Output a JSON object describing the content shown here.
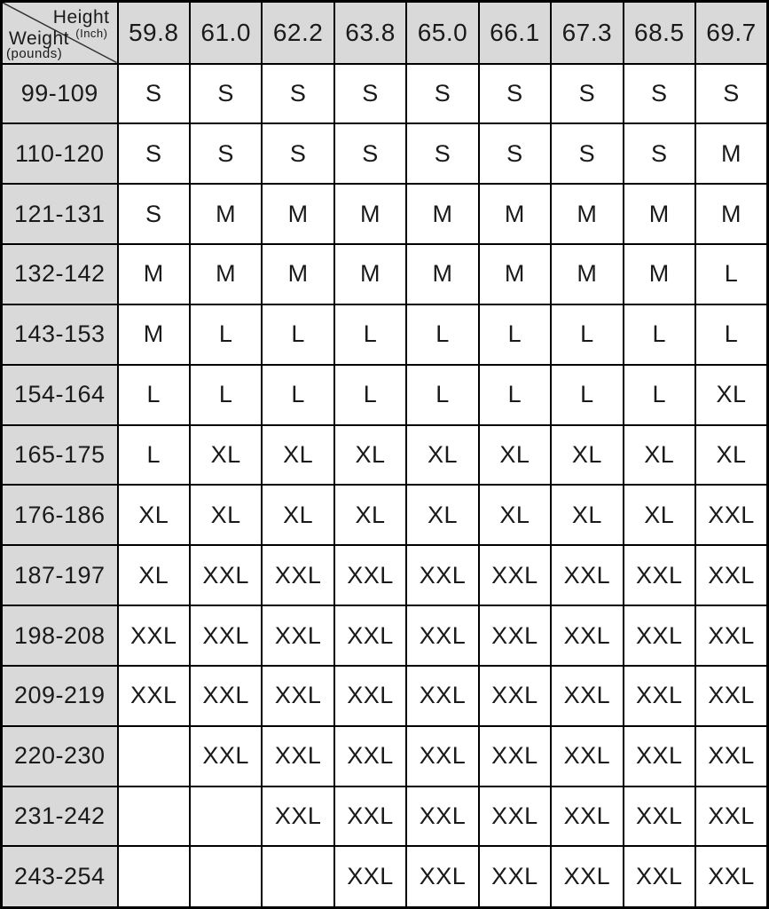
{
  "colors": {
    "header_bg": "#d9d9d9",
    "cell_bg": "#ffffff",
    "border": "#000000",
    "text": "#1a1a1a"
  },
  "chart_data": {
    "type": "table",
    "col_header_label": "Height",
    "col_header_unit": "(Inch)",
    "row_header_label": "Weight",
    "row_header_unit": "(pounds)",
    "columns": [
      "59.8",
      "61.0",
      "62.2",
      "63.8",
      "65.0",
      "66.1",
      "67.3",
      "68.5",
      "69.7"
    ],
    "rows": [
      {
        "weight": "99-109",
        "sizes": [
          "S",
          "S",
          "S",
          "S",
          "S",
          "S",
          "S",
          "S",
          "S"
        ]
      },
      {
        "weight": "110-120",
        "sizes": [
          "S",
          "S",
          "S",
          "S",
          "S",
          "S",
          "S",
          "S",
          "M"
        ]
      },
      {
        "weight": "121-131",
        "sizes": [
          "S",
          "M",
          "M",
          "M",
          "M",
          "M",
          "M",
          "M",
          "M"
        ]
      },
      {
        "weight": "132-142",
        "sizes": [
          "M",
          "M",
          "M",
          "M",
          "M",
          "M",
          "M",
          "M",
          "L"
        ]
      },
      {
        "weight": "143-153",
        "sizes": [
          "M",
          "L",
          "L",
          "L",
          "L",
          "L",
          "L",
          "L",
          "L"
        ]
      },
      {
        "weight": "154-164",
        "sizes": [
          "L",
          "L",
          "L",
          "L",
          "L",
          "L",
          "L",
          "L",
          "XL"
        ]
      },
      {
        "weight": "165-175",
        "sizes": [
          "L",
          "XL",
          "XL",
          "XL",
          "XL",
          "XL",
          "XL",
          "XL",
          "XL"
        ]
      },
      {
        "weight": "176-186",
        "sizes": [
          "XL",
          "XL",
          "XL",
          "XL",
          "XL",
          "XL",
          "XL",
          "XL",
          "XXL"
        ]
      },
      {
        "weight": "187-197",
        "sizes": [
          "XL",
          "XXL",
          "XXL",
          "XXL",
          "XXL",
          "XXL",
          "XXL",
          "XXL",
          "XXL"
        ]
      },
      {
        "weight": "198-208",
        "sizes": [
          "XXL",
          "XXL",
          "XXL",
          "XXL",
          "XXL",
          "XXL",
          "XXL",
          "XXL",
          "XXL"
        ]
      },
      {
        "weight": "209-219",
        "sizes": [
          "XXL",
          "XXL",
          "XXL",
          "XXL",
          "XXL",
          "XXL",
          "XXL",
          "XXL",
          "XXL"
        ]
      },
      {
        "weight": "220-230",
        "sizes": [
          "",
          "XXL",
          "XXL",
          "XXL",
          "XXL",
          "XXL",
          "XXL",
          "XXL",
          "XXL"
        ]
      },
      {
        "weight": "231-242",
        "sizes": [
          "",
          "",
          "XXL",
          "XXL",
          "XXL",
          "XXL",
          "XXL",
          "XXL",
          "XXL"
        ]
      },
      {
        "weight": "243-254",
        "sizes": [
          "",
          "",
          "",
          "XXL",
          "XXL",
          "XXL",
          "XXL",
          "XXL",
          "XXL"
        ]
      }
    ]
  }
}
